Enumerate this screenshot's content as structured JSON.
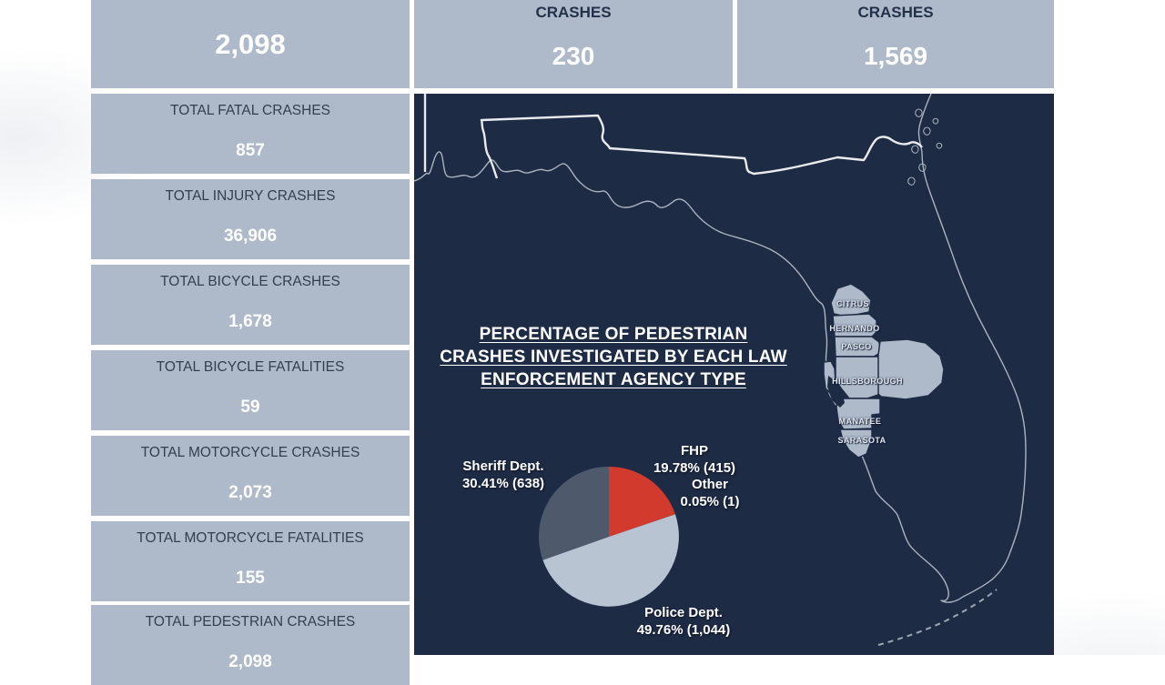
{
  "dashboard": {
    "top_stats": [
      {
        "value": "2,098"
      },
      {
        "label": "CRASHES",
        "value": "230"
      },
      {
        "label": "CRASHES",
        "value": "1,569"
      }
    ],
    "side_stats": [
      {
        "label": "TOTAL FATAL CRASHES",
        "value": "857"
      },
      {
        "label": "TOTAL INJURY CRASHES",
        "value": "36,906"
      },
      {
        "label": "TOTAL BICYCLE CRASHES",
        "value": "1,678"
      },
      {
        "label": "TOTAL BICYCLE FATALITIES",
        "value": "59"
      },
      {
        "label": "TOTAL MOTORCYCLE CRASHES",
        "value": "2,073"
      },
      {
        "label": "TOTAL MOTORCYCLE FATALITIES",
        "value": "155"
      },
      {
        "label": "TOTAL PEDESTRIAN CRASHES",
        "value": "2,098"
      }
    ],
    "map": {
      "region": "Florida",
      "counties": [
        "CITRUS",
        "HERNANDO",
        "PASCO",
        "HILLSBOROUGH",
        "MANATEE",
        "SARASOTA"
      ]
    }
  },
  "chart_data": {
    "type": "pie",
    "title": "PERCENTAGE OF PEDESTRIAN CRASHES INVESTIGATED BY EACH LAW ENFORCEMENT AGENCY TYPE",
    "title_lines": [
      "PERCENTAGE OF PEDESTRIAN",
      "CRASHES INVESTIGATED BY EACH LAW",
      "ENFORCEMENT AGENCY TYPE"
    ],
    "slices": [
      {
        "label": "FHP",
        "value": 415,
        "pct": 19.78,
        "display": "19.78% (415)",
        "color": "#d23a2e"
      },
      {
        "label": "Other",
        "value": 1,
        "pct": 0.05,
        "display": "0.05% (1)",
        "color": "#8a94a4"
      },
      {
        "label": "Police Dept.",
        "value": 1044,
        "pct": 49.76,
        "display": "49.76% (1,044)",
        "color": "#b9c4d3"
      },
      {
        "label": "Sheriff Dept.",
        "value": 638,
        "pct": 30.41,
        "display": "30.41% (638)",
        "color": "#4e5a6c"
      }
    ],
    "total": 2098,
    "start_angle_deg": -90,
    "direction": "clockwise",
    "legend_position": "labels-around-pie"
  },
  "colors": {
    "tile_fill": "#aebaca",
    "map_background": "#1e2b45",
    "accent_red": "#d23a2e",
    "pie_light": "#b9c4d3",
    "pie_dark": "#4e5a6c",
    "tile_label_text": "#333e4e",
    "value_text": "#ffffff",
    "coastline": "#b3bbc7",
    "state_border": "#e9ebee"
  }
}
